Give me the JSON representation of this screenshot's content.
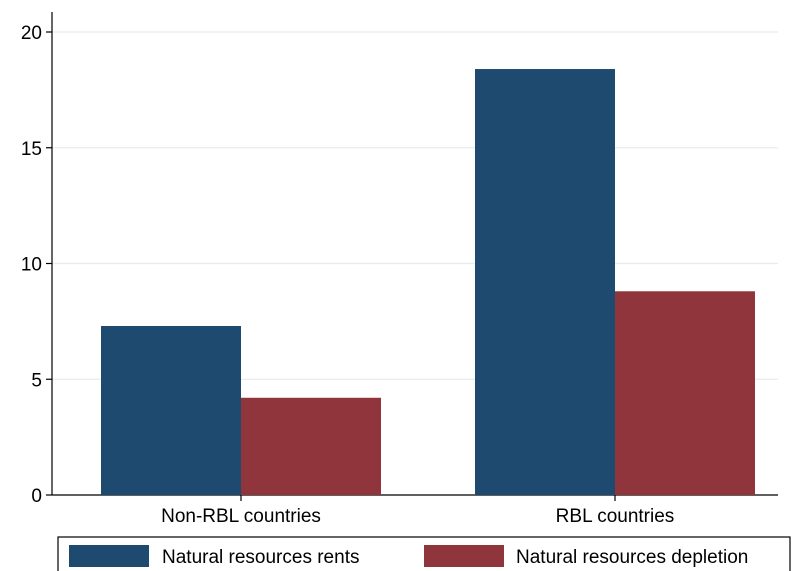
{
  "chart_data": {
    "type": "bar",
    "categories": [
      "Non-RBL countries",
      "RBL countries"
    ],
    "series": [
      {
        "name": "Natural resources rents",
        "values": [
          7.3,
          18.4
        ],
        "color": "#1f4a6f"
      },
      {
        "name": "Natural resources depletion",
        "values": [
          4.2,
          8.8
        ],
        "color": "#90353b"
      }
    ],
    "ylim": [
      0,
      20
    ],
    "yticks": [
      0,
      5,
      10,
      15,
      20
    ],
    "xlabel": "",
    "ylabel": "",
    "title": "",
    "grid": true,
    "legend_position": "bottom"
  }
}
